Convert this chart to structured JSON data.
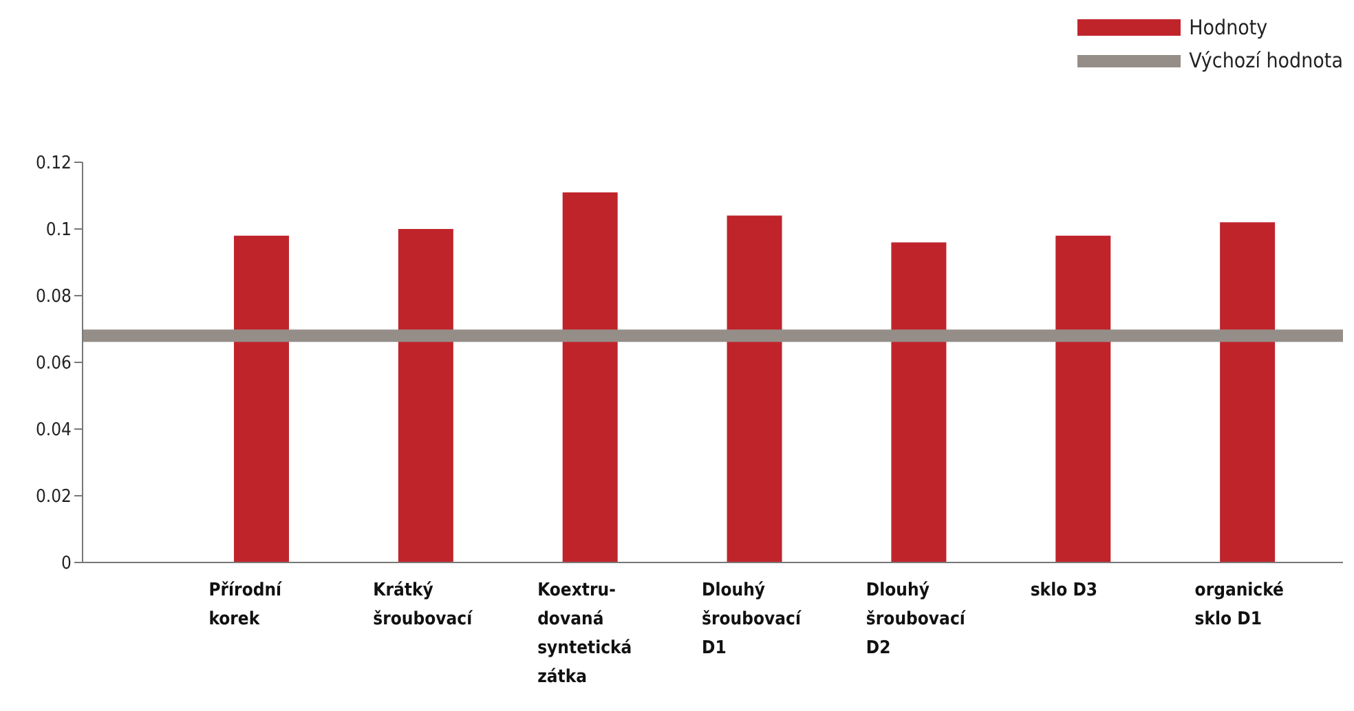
{
  "chart_data": {
    "type": "bar",
    "categories": [
      "Přírodní\nkorek",
      "Krátký\nšroubovací",
      "Koextru-\ndovaná\nsyntetická\nzátka",
      "Dlouhý\nšroubovací\nD1",
      "Dlouhý\nšroubovací\nD2",
      "sklo D3",
      "organické\nsklo D1"
    ],
    "series": [
      {
        "name": "Hodnoty",
        "color": "#c0242b",
        "values": [
          0.098,
          0.1,
          0.111,
          0.104,
          0.096,
          0.098,
          0.102
        ]
      }
    ],
    "ylim": [
      0,
      0.12
    ],
    "yticks": [
      0,
      0.02,
      0.04,
      0.06,
      0.08,
      0.1,
      0.12
    ],
    "ref_lines": [
      {
        "axis": "y",
        "value": 0.068,
        "label": "Výchozí hodnota",
        "color": "#958e88"
      }
    ],
    "grid": false,
    "legend": "top right"
  }
}
